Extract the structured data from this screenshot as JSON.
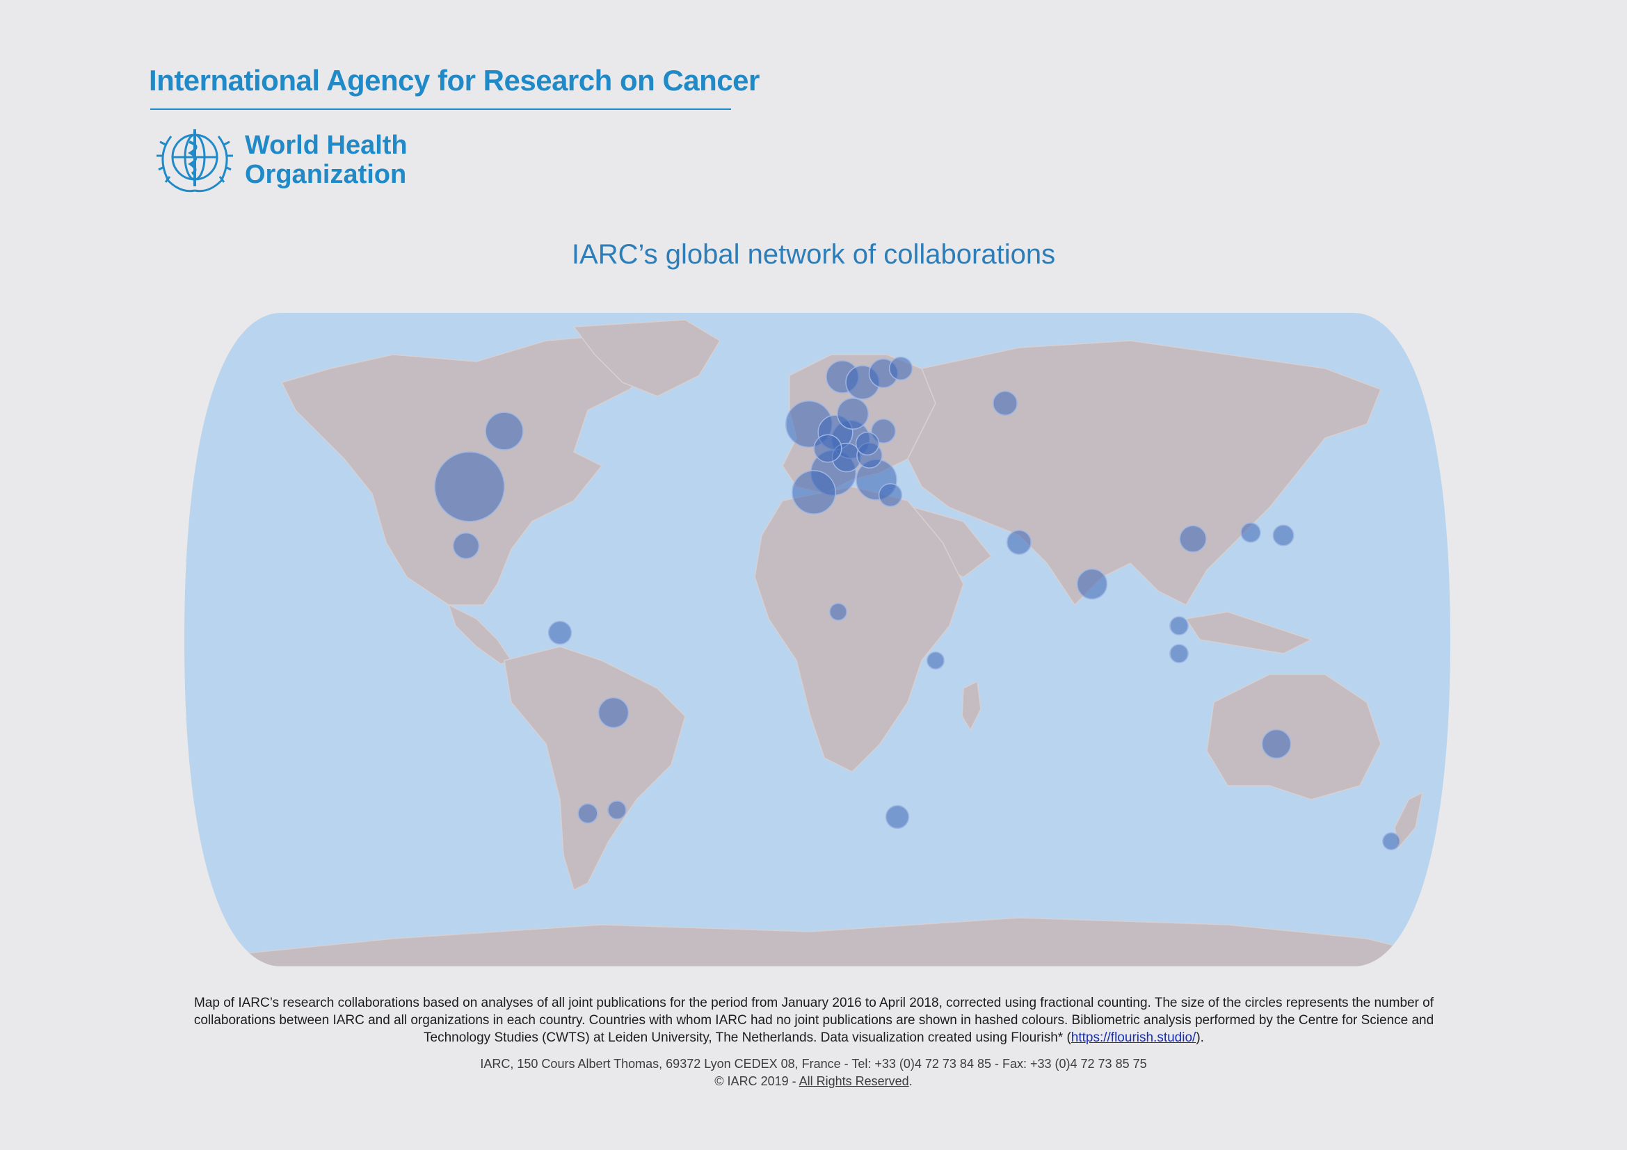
{
  "header": {
    "agency": "International Agency for Research on Cancer",
    "who_line1": "World Health",
    "who_line2": "Organization"
  },
  "title": "IARC’s global network of collaborations",
  "colors": {
    "accent": "#1f8ac7",
    "ocean": "#b9d4ee",
    "land": "#c4bcc0",
    "bubble": "#3f67b8"
  },
  "map_data": {
    "type": "world-bubble-map",
    "projection": "Robinson",
    "bubble_meaning": "number of collaborations",
    "bubbles": [
      {
        "region": "United States",
        "size": 1.0
      },
      {
        "region": "Canada",
        "size": 0.45
      },
      {
        "region": "Mexico",
        "size": 0.25
      },
      {
        "region": "Colombia",
        "size": 0.2
      },
      {
        "region": "Brazil",
        "size": 0.32
      },
      {
        "region": "Argentina",
        "size": 0.14
      },
      {
        "region": "Uruguay",
        "size": 0.12
      },
      {
        "region": "United Kingdom",
        "size": 0.6
      },
      {
        "region": "France",
        "size": 0.58
      },
      {
        "region": "Spain",
        "size": 0.55
      },
      {
        "region": "Italy",
        "size": 0.5
      },
      {
        "region": "Germany",
        "size": 0.46
      },
      {
        "region": "Netherlands",
        "size": 0.4
      },
      {
        "region": "Norway",
        "size": 0.36
      },
      {
        "region": "Sweden",
        "size": 0.38
      },
      {
        "region": "Finland",
        "size": 0.3
      },
      {
        "region": "Denmark",
        "size": 0.34
      },
      {
        "region": "Switzerland",
        "size": 0.3
      },
      {
        "region": "Belgium",
        "size": 0.28
      },
      {
        "region": "Austria",
        "size": 0.24
      },
      {
        "region": "Poland",
        "size": 0.22
      },
      {
        "region": "Czechia",
        "size": 0.2
      },
      {
        "region": "Greece",
        "size": 0.2
      },
      {
        "region": "Russia",
        "size": 0.22
      },
      {
        "region": "Estonia",
        "size": 0.2
      },
      {
        "region": "Iran",
        "size": 0.22
      },
      {
        "region": "India",
        "size": 0.32
      },
      {
        "region": "China",
        "size": 0.26
      },
      {
        "region": "Japan",
        "size": 0.16
      },
      {
        "region": "Korea",
        "size": 0.14
      },
      {
        "region": "Thailand",
        "size": 0.12
      },
      {
        "region": "Malaysia",
        "size": 0.12
      },
      {
        "region": "South Africa",
        "size": 0.2
      },
      {
        "region": "Nigeria",
        "size": 0.1
      },
      {
        "region": "Kenya",
        "size": 0.1
      },
      {
        "region": "Australia",
        "size": 0.3
      },
      {
        "region": "New Zealand",
        "size": 0.1
      }
    ]
  },
  "caption": {
    "text": "Map of IARC’s research collaborations based on analyses of all joint publications for the period from January 2016 to April 2018, corrected using fractional counting. The size of the circles represents the number of collaborations between IARC and all organizations in each country. Countries with whom IARC had no joint publications are shown in hashed colours. Bibliometric analysis performed by the Centre for Science and Technology Studies (CWTS) at Leiden University, The Netherlands. Data visualization created using Flourish* (",
    "link": "https://flourish.studio/",
    "tail": ")."
  },
  "footer": {
    "address": "IARC, 150 Cours Albert Thomas, 69372 Lyon CEDEX 08, France - Tel: +33 (0)4 72 73 84 85 - Fax: +33 (0)4 72 73 85 75",
    "copyright": "© IARC 2019 - ",
    "rights": "All Rights Reserved",
    "rights_tail": "."
  }
}
